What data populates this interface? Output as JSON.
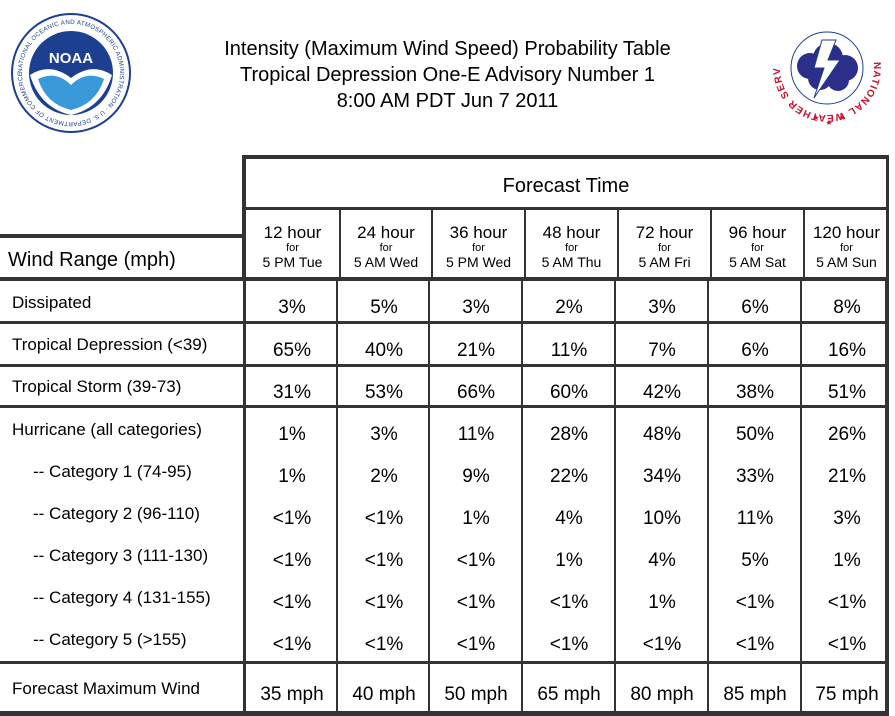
{
  "title": {
    "line1": "Intensity (Maximum Wind Speed) Probability Table",
    "line2": "Tropical Depression One-E Advisory Number 1",
    "line3": "8:00 AM PDT Jun 7 2011"
  },
  "logos": {
    "noaa": {
      "icon": "noaa-logo",
      "text": "NOAA",
      "ring_text": "NATIONAL OCEANIC AND ATMOSPHERIC ADMINISTRATION · U.S. DEPARTMENT OF COMMERCE",
      "color": "#1d3f8f"
    },
    "nws": {
      "icon": "nws-logo",
      "ring_text": "NATIONAL WEATHER SERVICE",
      "color": "#c8102e"
    }
  },
  "header": {
    "forecast_time": "Forecast Time",
    "wind_range": "Wind Range (mph)",
    "for": "for",
    "columns": [
      {
        "hour": "12 hour",
        "date": "5 PM Tue"
      },
      {
        "hour": "24 hour",
        "date": "5 AM Wed"
      },
      {
        "hour": "36 hour",
        "date": "5 PM Wed"
      },
      {
        "hour": "48 hour",
        "date": "5 AM Thu"
      },
      {
        "hour": "72 hour",
        "date": "5 AM Fri"
      },
      {
        "hour": "96 hour",
        "date": "5 AM Sat"
      },
      {
        "hour": "120 hour",
        "date": "5 AM Sun"
      }
    ]
  },
  "rows": [
    {
      "label": "Dissipated",
      "values": [
        "3%",
        "5%",
        "3%",
        "2%",
        "3%",
        "6%",
        "8%"
      ]
    },
    {
      "label": "Tropical Depression (<39)",
      "values": [
        "65%",
        "40%",
        "21%",
        "11%",
        "7%",
        "6%",
        "16%"
      ]
    },
    {
      "label": "Tropical Storm (39-73)",
      "values": [
        "31%",
        "53%",
        "66%",
        "60%",
        "42%",
        "38%",
        "51%"
      ]
    },
    {
      "label": "Hurricane (all categories)",
      "values": [
        "1%",
        "3%",
        "11%",
        "28%",
        "48%",
        "50%",
        "26%"
      ]
    },
    {
      "label": "-- Category 1 (74-95)",
      "values": [
        "1%",
        "2%",
        "9%",
        "22%",
        "34%",
        "33%",
        "21%"
      ]
    },
    {
      "label": "-- Category 2 (96-110)",
      "values": [
        "<1%",
        "<1%",
        "1%",
        "4%",
        "10%",
        "11%",
        "3%"
      ]
    },
    {
      "label": "-- Category 3 (111-130)",
      "values": [
        "<1%",
        "<1%",
        "<1%",
        "1%",
        "4%",
        "5%",
        "1%"
      ]
    },
    {
      "label": "-- Category 4 (131-155)",
      "values": [
        "<1%",
        "<1%",
        "<1%",
        "<1%",
        "1%",
        "<1%",
        "<1%"
      ]
    },
    {
      "label": "-- Category 5 (>155)",
      "values": [
        "<1%",
        "<1%",
        "<1%",
        "<1%",
        "<1%",
        "<1%",
        "<1%"
      ]
    },
    {
      "label": "Forecast Maximum Wind",
      "values": [
        "35 mph",
        "40 mph",
        "50 mph",
        "65 mph",
        "80 mph",
        "85 mph",
        "75 mph"
      ]
    }
  ]
}
